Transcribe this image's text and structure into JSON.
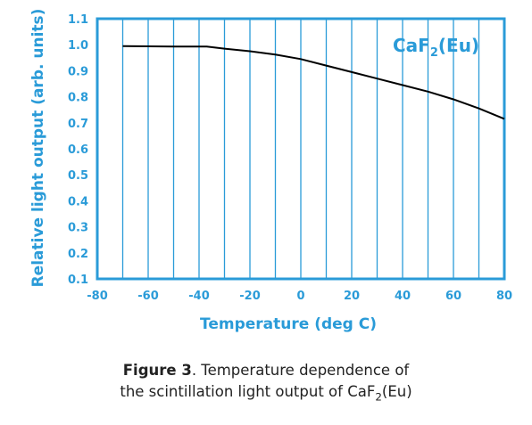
{
  "chart_data": {
    "type": "line",
    "xlabel": "Temperature (deg C)",
    "ylabel": "Relative light output (arb. units)",
    "xlim": [
      -80,
      80
    ],
    "ylim": [
      0.1,
      1.1
    ],
    "x_ticks": [
      "-80",
      "-60",
      "-40",
      "-20",
      "0",
      "20",
      "40",
      "60",
      "80"
    ],
    "y_ticks": [
      "0.1",
      "0.2",
      "0.3",
      "0.4",
      "0.5",
      "0.6",
      "0.7",
      "0.8",
      "0.9",
      "1.0",
      "1.1"
    ],
    "grid": "vertical",
    "series": [
      {
        "name_main": "CaF",
        "name_sub": "2",
        "name_tail": "(Eu)",
        "x": [
          -70,
          -60,
          -50,
          -40,
          -37,
          -30,
          -20,
          -10,
          0,
          10,
          20,
          30,
          40,
          50,
          60,
          70,
          80
        ],
        "y": [
          0.995,
          0.994,
          0.993,
          0.993,
          0.993,
          0.985,
          0.975,
          0.962,
          0.945,
          0.92,
          0.895,
          0.87,
          0.845,
          0.82,
          0.79,
          0.755,
          0.715
        ]
      }
    ]
  },
  "caption": {
    "label": "Figure 3",
    "line1_text": ". Temperature dependence of",
    "line2_main": "the scintillation light output of CaF",
    "line2_sub": "2",
    "line2_tail": "(Eu)"
  },
  "colors": {
    "axis": "#2a9bd8",
    "curve": "#000000",
    "grid": "#2a9bd8"
  }
}
